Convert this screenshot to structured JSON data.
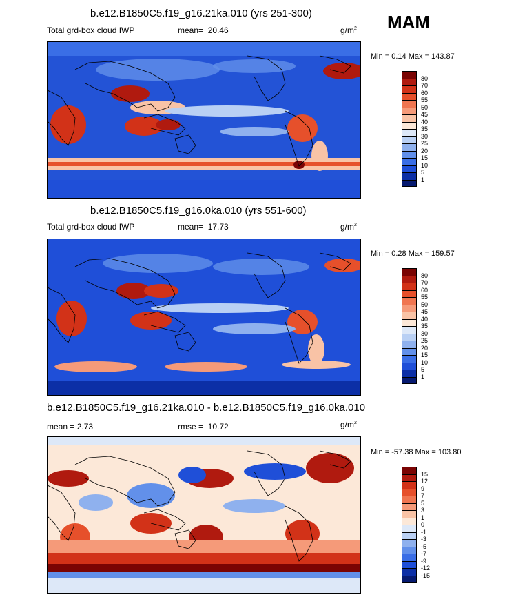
{
  "season": "MAM",
  "panels": [
    {
      "title": "b.e12.B1850C5.f19_g16.21ka.010 (yrs 251-300)",
      "left_label": "Total grd-box cloud IWP",
      "mean_label": "mean=",
      "mean_value": "20.46",
      "units": "g/m",
      "units_sup": "2",
      "minmax": "Min =   0.14 Max = 143.87"
    },
    {
      "title": "b.e12.B1850C5.f19_g16.0ka.010 (yrs 551-600)",
      "left_label": "Total grd-box cloud IWP",
      "mean_label": "mean=",
      "mean_value": "17.73",
      "units": "g/m",
      "units_sup": "2",
      "minmax": "Min =   0.28 Max = 159.57"
    },
    {
      "title": "b.e12.B1850C5.f19_g16.21ka.010 - b.e12.B1850C5.f19_g16.0ka.010",
      "left_label": "mean =   2.73",
      "mean_label": "rmse =",
      "mean_value": "10.72",
      "units": "g/m",
      "units_sup": "2",
      "minmax": "Min = -57.38 Max = 103.80"
    }
  ],
  "colorbar_abs": {
    "labels": [
      "80",
      "70",
      "60",
      "55",
      "50",
      "45",
      "40",
      "35",
      "30",
      "25",
      "20",
      "15",
      "10",
      "5",
      "1"
    ],
    "colors": [
      "#7a0403",
      "#b01a0f",
      "#d23218",
      "#e6502b",
      "#f07550",
      "#f59a79",
      "#f9c3a6",
      "#fce8d8",
      "#dde8f8",
      "#b9d0f4",
      "#8fb1ee",
      "#6290ea",
      "#3a6ee6",
      "#1f4fd8",
      "#0c2fa6",
      "#061a70"
    ]
  },
  "colorbar_diff": {
    "labels": [
      "15",
      "12",
      "9",
      "7",
      "5",
      "3",
      "1",
      "0",
      "-1",
      "-3",
      "-5",
      "-7",
      "-9",
      "-12",
      "-15"
    ],
    "colors": [
      "#7a0403",
      "#b01a0f",
      "#d23218",
      "#e6502b",
      "#f07550",
      "#f59a79",
      "#f9c3a6",
      "#fce8d8",
      "#dde8f8",
      "#b9d0f4",
      "#8fb1ee",
      "#6290ea",
      "#3a6ee6",
      "#1f4fd8",
      "#0c2fa6",
      "#061a70"
    ]
  }
}
